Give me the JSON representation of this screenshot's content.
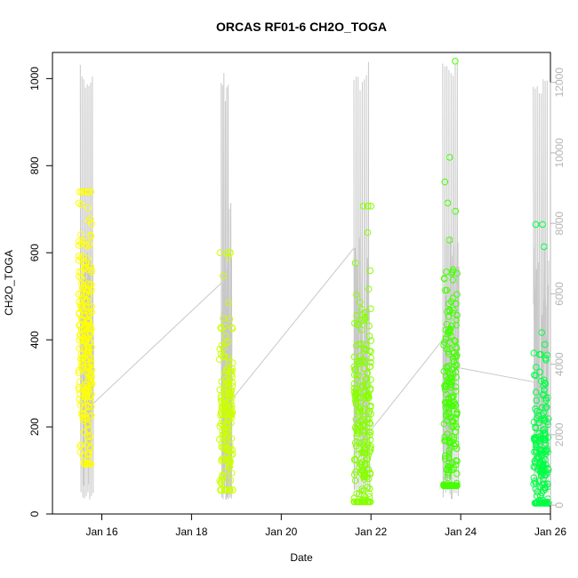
{
  "chart_data": {
    "type": "scatter",
    "title": "ORCAS RF01-6 CH2O_TOGA",
    "xlabel": "Date",
    "ylabel": "CH2O_TOGA",
    "x_unit": "days (January 2016)",
    "xlim": [
      14.9,
      26.0
    ],
    "ylim": [
      0,
      1060
    ],
    "y2lim": [
      -250,
      12850
    ],
    "x_ticks": [
      {
        "value": 16,
        "label": "Jan 16"
      },
      {
        "value": 18,
        "label": "Jan 18"
      },
      {
        "value": 20,
        "label": "Jan 20"
      },
      {
        "value": 22,
        "label": "Jan 22"
      },
      {
        "value": 24,
        "label": "Jan 24"
      },
      {
        "value": 26,
        "label": "Jan 26"
      }
    ],
    "y_ticks": [
      0,
      200,
      400,
      600,
      800,
      1000
    ],
    "y2_ticks": [
      0,
      2000,
      4000,
      6000,
      8000,
      10000,
      12000
    ],
    "grid": false,
    "legend": "none",
    "colors": {
      "axis": "#000000",
      "right_axis": "#b5b5b5",
      "altitude_line": "#c8c8c8",
      "flights": [
        "#ffff00",
        "#ccff00",
        "#88ff00",
        "#44ff00",
        "#00ff44"
      ]
    },
    "series": [
      {
        "flight": 1,
        "x_range": [
          15.48,
          15.78
        ],
        "y_range": [
          115,
          740
        ],
        "y_center": 380,
        "n": 230,
        "color": "#ffff00"
      },
      {
        "flight": 2,
        "x_range": [
          18.62,
          18.92
        ],
        "y_range": [
          55,
          600
        ],
        "y_center": 230,
        "n": 180,
        "color": "#ccff00"
      },
      {
        "flight": 3,
        "x_range": [
          21.62,
          22.0
        ],
        "y_range": [
          28,
          707
        ],
        "y_center": 220,
        "n": 230,
        "color": "#88ff00"
      },
      {
        "flight": 4,
        "x_range": [
          23.62,
          23.92
        ],
        "y_range": [
          65,
          1040
        ],
        "y_center": 210,
        "n": 230,
        "color": "#44ff00"
      },
      {
        "flight": 5,
        "x_range": [
          25.62,
          25.96
        ],
        "y_range": [
          25,
          665
        ],
        "y_center": 140,
        "n": 200,
        "color": "#00ff44"
      }
    ],
    "altitude_trace": {
      "axis": "right",
      "flights": [
        {
          "x_range": [
            15.52,
            15.82
          ],
          "peaks": [
            12500,
            12200,
            12300
          ],
          "min": 150
        },
        {
          "x_range": [
            18.66,
            18.9
          ],
          "peaks": [
            12400,
            12000,
            9000
          ],
          "min": 150
        },
        {
          "x_range": [
            21.62,
            21.98
          ],
          "peaks": [
            12600,
            12300,
            12600
          ],
          "min": 150
        },
        {
          "x_range": [
            23.6,
            23.96
          ],
          "peaks": [
            12600,
            12450,
            12800
          ],
          "min": 150
        },
        {
          "x_range": [
            25.62,
            25.96
          ],
          "peaks": [
            12300,
            12100,
            12400
          ],
          "min": 150
        }
      ],
      "transits": [
        {
          "from": [
            15.82,
            2900
          ],
          "to": [
            18.66,
            6300
          ]
        },
        {
          "from": [
            18.9,
            3000
          ],
          "to": [
            21.62,
            7300
          ]
        },
        {
          "from": [
            21.98,
            2100
          ],
          "to": [
            23.6,
            4700
          ]
        },
        {
          "from": [
            23.96,
            3900
          ],
          "to": [
            25.62,
            3500
          ]
        }
      ]
    }
  }
}
